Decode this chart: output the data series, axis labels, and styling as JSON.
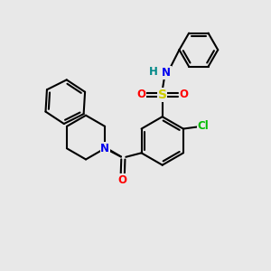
{
  "bg": "#e8e8e8",
  "bc": "#000000",
  "bw": 1.5,
  "Nc": "#0000ee",
  "Oc": "#ff0000",
  "Sc": "#cccc00",
  "Clc": "#00bb00",
  "Hc": "#008888",
  "fs": 8.5,
  "figsize": [
    3.0,
    3.0
  ],
  "dpi": 100,
  "xlim": [
    0,
    10
  ],
  "ylim": [
    0,
    10
  ]
}
